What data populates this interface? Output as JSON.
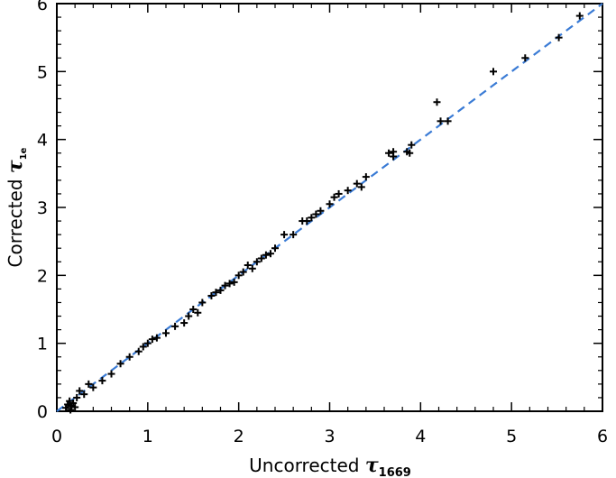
{
  "chart_data": {
    "type": "scatter",
    "xlabel": {
      "prefix": "Uncorrected ",
      "symbol": "τ",
      "subscript": "1669"
    },
    "ylabel": {
      "prefix": "Corrected ",
      "symbol": "τ",
      "subscript": "1e"
    },
    "xlim": [
      0,
      6
    ],
    "ylim": [
      0,
      6
    ],
    "xticks": [
      "0",
      "1",
      "2",
      "3",
      "4",
      "5",
      "6"
    ],
    "yticks": [
      "0",
      "1",
      "2",
      "3",
      "4",
      "5",
      "6"
    ],
    "grid": false,
    "reference_line": {
      "x": [
        0,
        6
      ],
      "y": [
        0,
        6
      ],
      "style": "dashed",
      "color": "#3a7bd5"
    },
    "marker_color": "#000000",
    "series": [
      {
        "marker": "plus",
        "points": [
          [
            0.1,
            0.05
          ],
          [
            0.12,
            0.1
          ],
          [
            0.14,
            0.15
          ],
          [
            0.15,
            0.02
          ],
          [
            0.16,
            0.08
          ],
          [
            0.18,
            0.12
          ],
          [
            0.2,
            0.06
          ],
          [
            0.22,
            0.2
          ],
          [
            0.25,
            0.3
          ],
          [
            0.3,
            0.25
          ],
          [
            0.35,
            0.4
          ],
          [
            0.4,
            0.35
          ],
          [
            0.5,
            0.45
          ],
          [
            0.6,
            0.55
          ],
          [
            0.7,
            0.7
          ],
          [
            0.8,
            0.8
          ],
          [
            0.9,
            0.88
          ],
          [
            0.95,
            0.95
          ],
          [
            1.0,
            1.0
          ],
          [
            1.05,
            1.06
          ],
          [
            1.1,
            1.08
          ],
          [
            1.2,
            1.15
          ],
          [
            1.3,
            1.25
          ],
          [
            1.4,
            1.3
          ],
          [
            1.45,
            1.4
          ],
          [
            1.5,
            1.5
          ],
          [
            1.55,
            1.45
          ],
          [
            1.6,
            1.6
          ],
          [
            1.7,
            1.7
          ],
          [
            1.75,
            1.75
          ],
          [
            1.8,
            1.78
          ],
          [
            1.85,
            1.85
          ],
          [
            1.9,
            1.88
          ],
          [
            1.95,
            1.9
          ],
          [
            2.0,
            2.0
          ],
          [
            2.05,
            2.05
          ],
          [
            2.1,
            2.15
          ],
          [
            2.15,
            2.1
          ],
          [
            2.2,
            2.2
          ],
          [
            2.25,
            2.25
          ],
          [
            2.3,
            2.3
          ],
          [
            2.35,
            2.32
          ],
          [
            2.4,
            2.4
          ],
          [
            2.5,
            2.6
          ],
          [
            2.6,
            2.6
          ],
          [
            2.7,
            2.8
          ],
          [
            2.75,
            2.8
          ],
          [
            2.8,
            2.85
          ],
          [
            2.85,
            2.9
          ],
          [
            2.9,
            2.95
          ],
          [
            3.0,
            3.05
          ],
          [
            3.05,
            3.15
          ],
          [
            3.1,
            3.2
          ],
          [
            3.2,
            3.25
          ],
          [
            3.3,
            3.35
          ],
          [
            3.35,
            3.3
          ],
          [
            3.4,
            3.45
          ],
          [
            3.65,
            3.8
          ],
          [
            3.7,
            3.75
          ],
          [
            3.7,
            3.82
          ],
          [
            3.85,
            3.82
          ],
          [
            3.88,
            3.8
          ],
          [
            3.9,
            3.92
          ],
          [
            4.18,
            4.55
          ],
          [
            4.22,
            4.27
          ],
          [
            4.3,
            4.27
          ],
          [
            4.8,
            5.0
          ],
          [
            5.15,
            5.2
          ],
          [
            5.52,
            5.5
          ],
          [
            5.75,
            5.82
          ]
        ]
      }
    ]
  }
}
